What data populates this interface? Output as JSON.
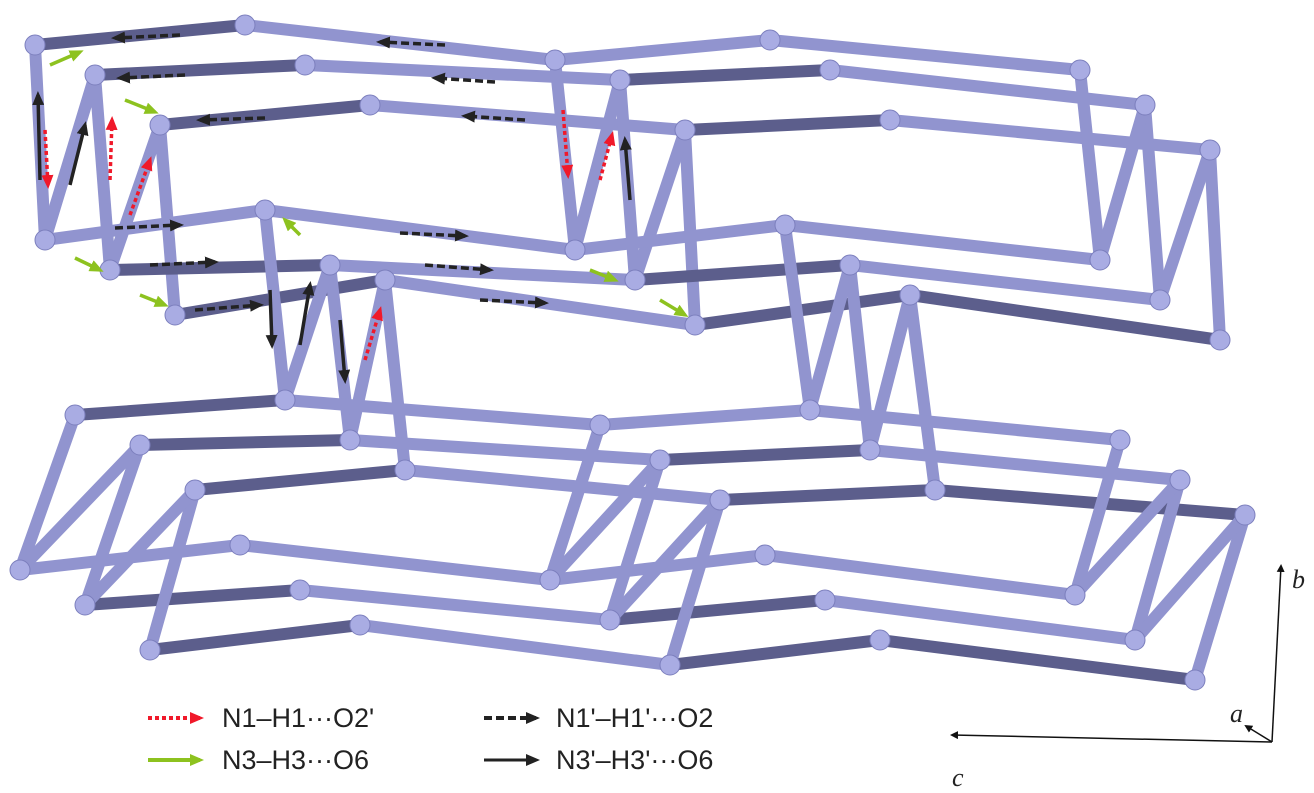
{
  "legend": [
    {
      "label": "N1–H1···O2'"
    },
    {
      "label": "N1'–H1'···O2"
    },
    {
      "label": "N3–H3···O6"
    },
    {
      "label": "N3'–H3'···O6"
    }
  ],
  "axes": {
    "a": "a",
    "b": "b",
    "c": "c"
  }
}
